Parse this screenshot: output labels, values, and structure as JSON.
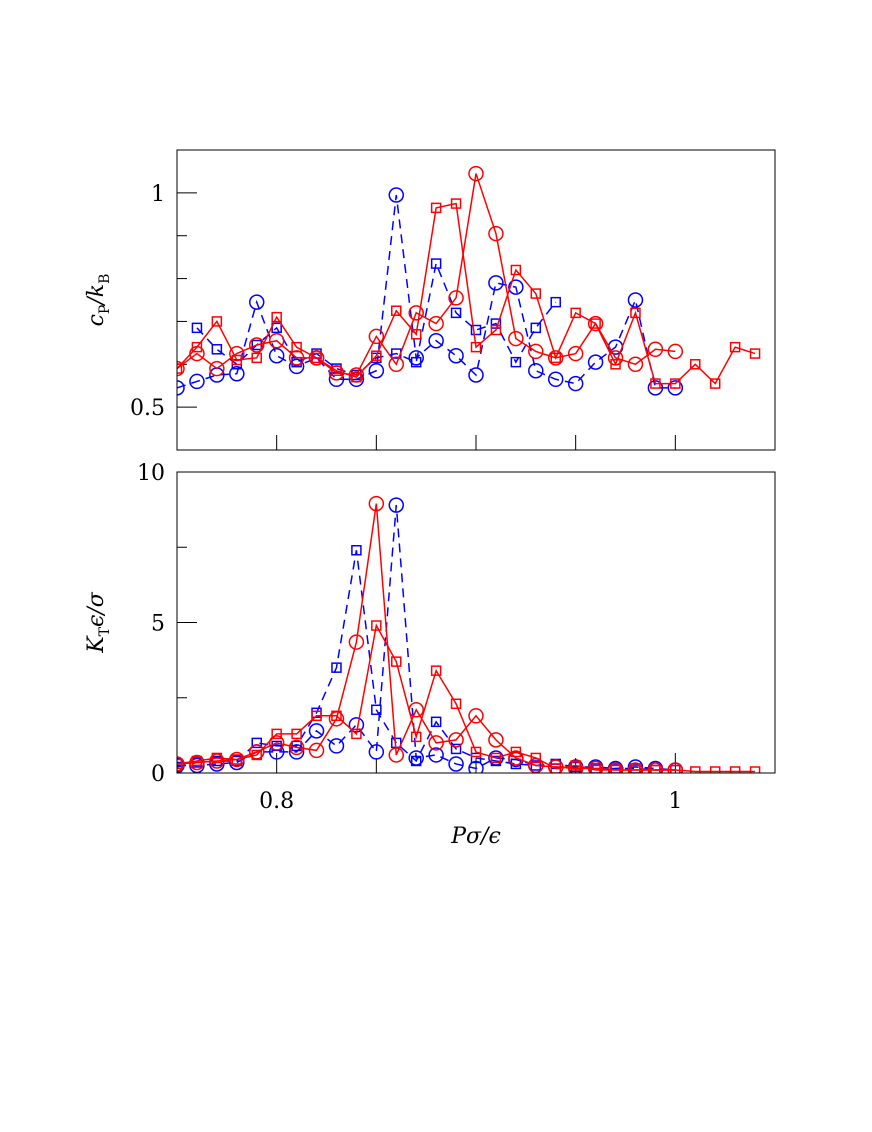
{
  "chart_data": [
    {
      "type": "line",
      "ylabel": [
        "c",
        "P",
        "/k",
        "B"
      ],
      "xlim": [
        0.75,
        1.05
      ],
      "xminor": [
        0.8,
        0.85,
        0.9,
        0.95,
        1
      ],
      "ylim": [
        0.4,
        1.1
      ],
      "yticks": [
        0.5,
        1
      ],
      "yminor": [
        0.6,
        0.7,
        0.8,
        0.9
      ],
      "series": [
        {
          "color": "#0000ff",
          "marker": "circle",
          "dash": true,
          "x": [
            0.75,
            0.76,
            0.77,
            0.78,
            0.79,
            0.8,
            0.81,
            0.82,
            0.83,
            0.84,
            0.85,
            0.86,
            0.87,
            0.88,
            0.89,
            0.9,
            0.91,
            0.92,
            0.93,
            0.94,
            0.95,
            0.96,
            0.97,
            0.98,
            0.99,
            1.0
          ],
          "values": [
            0.545,
            0.56,
            0.575,
            0.578,
            0.745,
            0.62,
            0.595,
            0.615,
            0.565,
            0.565,
            0.585,
            0.995,
            0.615,
            0.655,
            0.62,
            0.575,
            0.79,
            0.78,
            0.585,
            0.565,
            0.555,
            0.605,
            0.64,
            0.75,
            0.545,
            0.545
          ]
        },
        {
          "color": "#0000ff",
          "marker": "square",
          "dash": true,
          "x": [
            0.76,
            0.77,
            0.78,
            0.79,
            0.8,
            0.81,
            0.82,
            0.83,
            0.84,
            0.85,
            0.86,
            0.87,
            0.88,
            0.89,
            0.9,
            0.91,
            0.92,
            0.93,
            0.94
          ],
          "values": [
            0.685,
            0.635,
            0.6,
            0.645,
            0.685,
            0.605,
            0.625,
            0.59,
            0.575,
            0.615,
            0.625,
            0.605,
            0.835,
            0.72,
            0.68,
            0.695,
            0.605,
            0.685,
            0.745
          ]
        },
        {
          "color": "#ff0000",
          "marker": "circle",
          "dash": false,
          "x": [
            0.75,
            0.76,
            0.77,
            0.78,
            0.79,
            0.8,
            0.81,
            0.82,
            0.83,
            0.84,
            0.85,
            0.86,
            0.87,
            0.88,
            0.89,
            0.9,
            0.91,
            0.92,
            0.93,
            0.94,
            0.95,
            0.96,
            0.97,
            0.98,
            0.99,
            1.0
          ],
          "values": [
            0.59,
            0.625,
            0.59,
            0.625,
            0.645,
            0.655,
            0.615,
            0.615,
            0.58,
            0.575,
            0.665,
            0.6,
            0.72,
            0.695,
            0.755,
            1.045,
            0.905,
            0.66,
            0.63,
            0.615,
            0.625,
            0.695,
            0.615,
            0.6,
            0.635,
            0.63
          ]
        },
        {
          "color": "#ff0000",
          "marker": "square",
          "dash": false,
          "x": [
            0.75,
            0.76,
            0.77,
            0.78,
            0.79,
            0.8,
            0.81,
            0.82,
            0.83,
            0.84,
            0.85,
            0.86,
            0.87,
            0.88,
            0.89,
            0.9,
            0.91,
            0.92,
            0.93,
            0.94,
            0.95,
            0.96,
            0.97,
            0.98,
            0.99,
            1.0,
            1.01,
            1.02,
            1.03,
            1.04
          ],
          "values": [
            0.59,
            0.64,
            0.7,
            0.61,
            0.615,
            0.71,
            0.64,
            0.615,
            0.585,
            0.57,
            0.62,
            0.725,
            0.67,
            0.965,
            0.975,
            0.64,
            0.68,
            0.82,
            0.765,
            0.615,
            0.72,
            0.695,
            0.6,
            0.72,
            0.555,
            0.555,
            0.6,
            0.555,
            0.64,
            0.625
          ]
        }
      ]
    },
    {
      "type": "line",
      "ylabel": [
        "K",
        "T",
        "ϵ/σ"
      ],
      "xlabel": "Pσ/ϵ",
      "xlim": [
        0.75,
        1.05
      ],
      "xticks": [
        0.8,
        1
      ],
      "xminor": [
        0.85,
        0.9,
        0.95
      ],
      "ylim": [
        0,
        10
      ],
      "yticks": [
        0,
        5,
        10
      ],
      "yminor": [
        2.5,
        7.5
      ],
      "series": [
        {
          "color": "#0000ff",
          "marker": "circle",
          "dash": true,
          "x": [
            0.75,
            0.76,
            0.77,
            0.78,
            0.79,
            0.8,
            0.81,
            0.82,
            0.83,
            0.84,
            0.85,
            0.86,
            0.87,
            0.88,
            0.89,
            0.9,
            0.91,
            0.92,
            0.93,
            0.94,
            0.95,
            0.96,
            0.97,
            0.98,
            0.99,
            1.0
          ],
          "values": [
            0.25,
            0.25,
            0.3,
            0.35,
            0.7,
            0.7,
            0.7,
            1.4,
            0.9,
            1.6,
            0.7,
            8.9,
            0.5,
            0.6,
            0.3,
            0.15,
            0.5,
            0.45,
            0.25,
            0.2,
            0.2,
            0.2,
            0.15,
            0.2,
            0.15,
            0.1
          ]
        },
        {
          "color": "#0000ff",
          "marker": "square",
          "dash": true,
          "x": [
            0.75,
            0.76,
            0.77,
            0.78,
            0.79,
            0.8,
            0.81,
            0.82,
            0.83,
            0.84,
            0.85,
            0.86,
            0.87,
            0.88,
            0.89,
            0.9,
            0.91,
            0.92,
            0.93,
            0.94,
            0.95,
            0.96,
            0.97,
            0.98,
            0.99,
            1.0
          ],
          "values": [
            0.2,
            0.35,
            0.4,
            0.4,
            1.0,
            0.9,
            0.9,
            2.0,
            3.5,
            7.4,
            2.1,
            1.0,
            0.4,
            1.7,
            0.8,
            0.5,
            0.4,
            0.3,
            0.25,
            0.3,
            0.2,
            0.15,
            0.15,
            0.15,
            0.1,
            0.1
          ]
        },
        {
          "color": "#ff0000",
          "marker": "circle",
          "dash": false,
          "x": [
            0.75,
            0.76,
            0.77,
            0.78,
            0.79,
            0.8,
            0.81,
            0.82,
            0.83,
            0.84,
            0.85,
            0.86,
            0.87,
            0.88,
            0.89,
            0.9,
            0.91,
            0.92,
            0.93,
            0.94,
            0.95,
            0.96,
            0.97,
            0.98,
            0.99,
            1.0
          ],
          "values": [
            0.3,
            0.35,
            0.4,
            0.45,
            0.7,
            1.0,
            0.85,
            0.75,
            1.8,
            4.35,
            8.95,
            0.6,
            2.1,
            1.0,
            1.1,
            1.9,
            1.1,
            0.5,
            0.25,
            0.2,
            0.15,
            0.15,
            0.1,
            0.1,
            0.1,
            0.1
          ]
        },
        {
          "color": "#ff0000",
          "marker": "square",
          "dash": false,
          "x": [
            0.75,
            0.76,
            0.77,
            0.78,
            0.79,
            0.8,
            0.81,
            0.82,
            0.83,
            0.84,
            0.85,
            0.86,
            0.87,
            0.88,
            0.89,
            0.9,
            0.91,
            0.92,
            0.93,
            0.94,
            0.95,
            0.96,
            0.97,
            0.98,
            0.99,
            1.0,
            1.01,
            1.02,
            1.03,
            1.04
          ],
          "values": [
            0.3,
            0.4,
            0.5,
            0.45,
            0.6,
            1.3,
            1.3,
            1.9,
            1.9,
            1.3,
            4.9,
            3.7,
            1.2,
            3.4,
            2.3,
            0.7,
            0.5,
            0.7,
            0.5,
            0.15,
            0.25,
            0.1,
            0.1,
            0.1,
            0.1,
            0.1,
            0.05,
            0.05,
            0.05,
            0.05
          ]
        }
      ]
    }
  ]
}
